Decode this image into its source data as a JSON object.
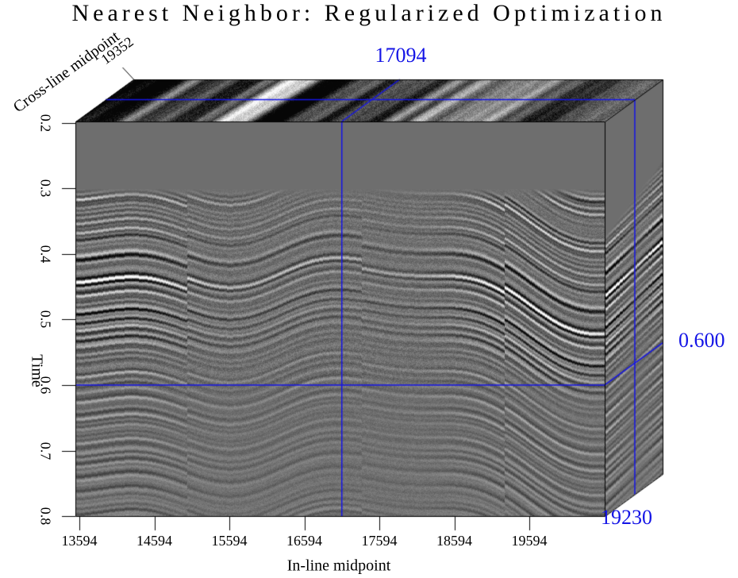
{
  "title": "Nearest Neighbor: Regularized Optimization",
  "colors": {
    "annotation": "#1414e6",
    "zero_gray": "#6e6e6e",
    "edge": "#000000",
    "background": "#ffffff"
  },
  "chart_data": {
    "type": "heatmap",
    "subtype": "3d-seismic-cube",
    "title": "Nearest Neighbor: Regularized Optimization",
    "colormap": "grayscale seismic amplitude",
    "legend": "none",
    "x_axis": {
      "label": "In-line midpoint",
      "ticks": [
        "13594",
        "14594",
        "15594",
        "16594",
        "17594",
        "18594",
        "19594"
      ]
    },
    "y_axis": {
      "label": "Time",
      "ticks": [
        "0.2",
        "0.3",
        "0.4",
        "0.5",
        "0.6",
        "0.7",
        "0.8"
      ]
    },
    "depth_axis": {
      "label": "Cross-line midpoint",
      "ticks": [
        "19352"
      ]
    },
    "crosshair": {
      "inline_label": "17094",
      "time_label": "0.600",
      "crossline_label": "19230"
    }
  }
}
